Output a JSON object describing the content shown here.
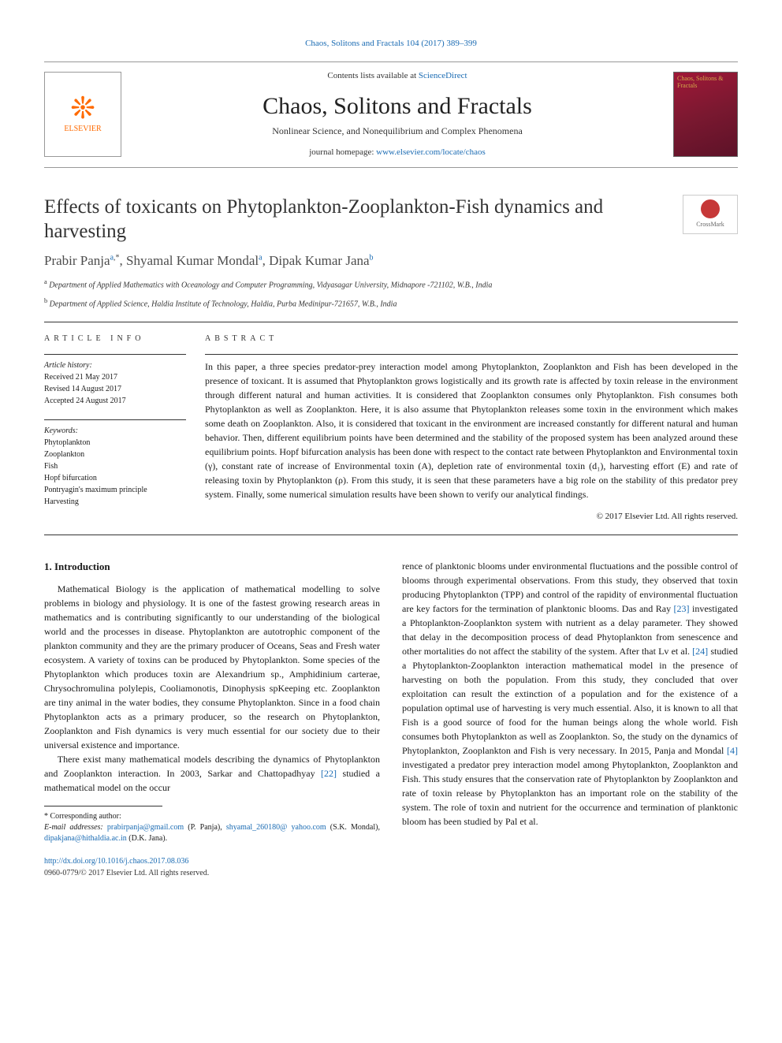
{
  "header": {
    "citation": "Chaos, Solitons and Fractals 104 (2017) 389–399",
    "contents_prefix": "Contents lists available at ",
    "contents_link": "ScienceDirect",
    "journal_name": "Chaos, Solitons and Fractals",
    "journal_subtitle": "Nonlinear Science, and Nonequilibrium and Complex Phenomena",
    "homepage_prefix": "journal homepage: ",
    "homepage_link": "www.elsevier.com/locate/chaos",
    "publisher_name": "ELSEVIER",
    "cover_text": "Chaos, Solitons & Fractals"
  },
  "article": {
    "title": "Effects of toxicants on Phytoplankton-Zooplankton-Fish dynamics and harvesting",
    "crossmark": "CrossMark",
    "authors_html": "Prabir Panja<sup><a class=\"ref\">a</a>,*</sup>, Shyamal Kumar Mondal<sup><a class=\"ref\">a</a></sup>, Dipak Kumar Jana<sup><a class=\"ref\">b</a></sup>",
    "affiliations": [
      {
        "key": "a",
        "text": "Department of Applied Mathematics with Oceanology and Computer Programming, Vidyasagar University, Midnapore -721102, W.B., India"
      },
      {
        "key": "b",
        "text": "Department of Applied Science, Haldia Institute of Technology, Haldia, Purba Medinipur-721657, W.B., India"
      }
    ]
  },
  "meta": {
    "article_info_heading": "ARTICLE INFO",
    "history_label": "Article history:",
    "history": [
      "Received 21 May 2017",
      "Revised 14 August 2017",
      "Accepted 24 August 2017"
    ],
    "keywords_label": "Keywords:",
    "keywords": [
      "Phytoplankton",
      "Zooplankton",
      "Fish",
      "Hopf bifurcation",
      "Pontryagin's maximum principle",
      "Harvesting"
    ]
  },
  "abstract": {
    "heading": "ABSTRACT",
    "text": "In this paper, a three species predator-prey interaction model among Phytoplankton, Zooplankton and Fish has been developed in the presence of toxicant. It is assumed that Phytoplankton grows logistically and its growth rate is affected by toxin release in the environment through different natural and human activities. It is considered that Zooplankton consumes only Phytoplankton. Fish consumes both Phytoplankton as well as Zooplankton. Here, it is also assume that Phytoplankton releases some toxin in the environment which makes some death on Zooplankton. Also, it is considered that toxicant in the environment are increased constantly for different natural and human behavior. Then, different equilibrium points have been determined and the stability of the proposed system has been analyzed around these equilibrium points. Hopf bifurcation analysis has been done with respect to the contact rate between Phytoplankton and Environmental toxin (γ), constant rate of increase of Environmental toxin (A), depletion rate of environmental toxin (d₁), harvesting effort (E) and rate of releasing toxin by Phytoplankton (ρ). From this study, it is seen that these parameters have a big role on the stability of this predator prey system. Finally, some numerical simulation results have been shown to verify our analytical findings.",
    "copyright": "© 2017 Elsevier Ltd. All rights reserved."
  },
  "body": {
    "section_number": "1.",
    "section_title": "Introduction",
    "p1": "Mathematical Biology is the application of mathematical modelling to solve problems in biology and physiology. It is one of the fastest growing research areas in mathematics and is contributing significantly to our understanding of the biological world and the processes in disease. Phytoplankton are autotrophic component of the plankton community and they are the primary producer of Oceans, Seas and Fresh water ecosystem. A variety of toxins can be produced by Phytoplankton. Some species of the Phytoplankton which produces toxin are Alexandrium sp., Amphidinium carterae, Chrysochromulina polylepis, Cooliamonotis, Dinophysis spKeeping etc. Zooplankton are tiny animal in the water bodies, they consume Phytoplankton. Since in a food chain Phytoplankton acts as a primary producer, so the research on Phytoplankton, Zooplankton and Fish dynamics is very much essential for our society due to their universal existence and importance.",
    "p2_a": "There exist many mathematical models describing the dynamics of Phytoplankton and Zooplankton interaction. In 2003, Sarkar and Chattopadhyay ",
    "p2_ref": "[22]",
    "p2_b": " studied a mathematical model on the occur",
    "p3_a": "rence of planktonic blooms under environmental fluctuations and the possible control of blooms through experimental observations. From this study, they observed that toxin producing Phytoplankton (TPP) and control of the rapidity of environmental fluctuation are key factors for the termination of planktonic blooms. Das and Ray ",
    "p3_ref1": "[23]",
    "p3_b": " investigated a Phtoplankton-Zooplankton system with nutrient as a delay parameter. They showed that delay in the decomposition process of dead Phytoplankton from senescence and other mortalities do not affect the stability of the system. After that Lv et al. ",
    "p3_ref2": "[24]",
    "p3_c": " studied a Phytoplankton-Zooplankton interaction mathematical model in the presence of harvesting on both the population. From this study, they concluded that over exploitation can result the extinction of a population and for the existence of a population optimal use of harvesting is very much essential. Also, it is known to all that Fish is a good source of food for the human beings along the whole world. Fish consumes both Phytoplankton as well as Zooplankton. So, the study on the dynamics of Phytoplankton, Zooplankton and Fish is very necessary. In 2015, Panja and Mondal ",
    "p3_ref3": "[4]",
    "p3_d": " investigated a predator prey interaction model among Phytoplankton, Zooplankton and Fish. This study ensures that the conservation rate of Phytoplankton by Zooplankton and rate of toxin release by Phytoplankton has an important role on the stability of the system. The role of toxin and nutrient for the occurrence and termination of planktonic bloom has been studied by Pal et al."
  },
  "footnotes": {
    "corresponding": "* Corresponding author:",
    "email_label": "E-mail addresses: ",
    "emails": [
      {
        "addr": "prabirpanja@gmail.com",
        "who": " (P. Panja), "
      },
      {
        "addr": "shyamal_260180@ yahoo.com",
        "who": " (S.K. Mondal), "
      },
      {
        "addr": "dipakjana@hithaldia.ac.in",
        "who": " (D.K. Jana)."
      }
    ]
  },
  "footer": {
    "doi": "http://dx.doi.org/10.1016/j.chaos.2017.08.036",
    "copyright": "0960-0779/© 2017 Elsevier Ltd. All rights reserved."
  },
  "colors": {
    "link": "#1a6bb3",
    "elsevier_orange": "#ff6a00",
    "crossmark_red": "#c63838",
    "cover_bg": "#a01838"
  }
}
